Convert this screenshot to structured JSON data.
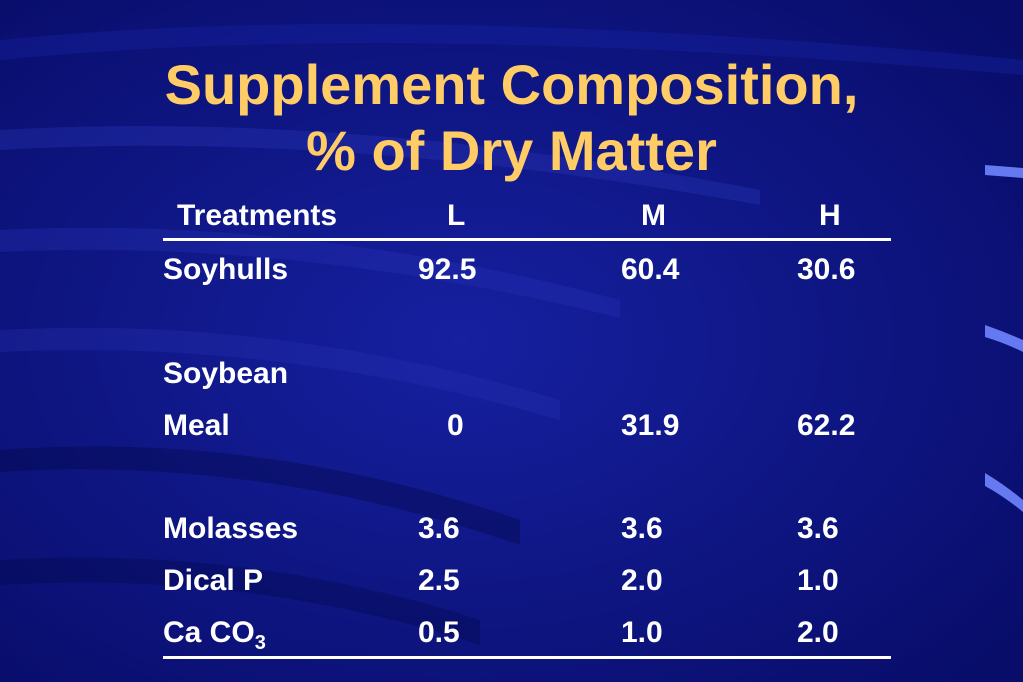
{
  "slide": {
    "title_line1": "Supplement Composition,",
    "title_line2": "% of Dry Matter"
  },
  "table": {
    "headers": [
      "Treatments",
      "L",
      "M",
      "H"
    ],
    "rows": [
      {
        "label": "Soyhulls",
        "values": [
          "92.5",
          "60.4",
          "30.6"
        ]
      },
      {
        "label_line1": "Soybean",
        "label_line2": "Meal",
        "values": [
          "0",
          "31.9",
          "62.2"
        ]
      },
      {
        "label": "Molasses",
        "values": [
          "3.6",
          "3.6",
          "3.6"
        ]
      },
      {
        "label": "Dical P",
        "values": [
          "2.5",
          "2.0",
          "1.0"
        ]
      },
      {
        "label_main": "Ca CO",
        "label_sub": "3",
        "values": [
          "0.5",
          "1.0",
          "2.0"
        ]
      }
    ]
  },
  "colors": {
    "background": "#0a0f7a",
    "title": "#ffcc66",
    "text": "#ffffff"
  }
}
